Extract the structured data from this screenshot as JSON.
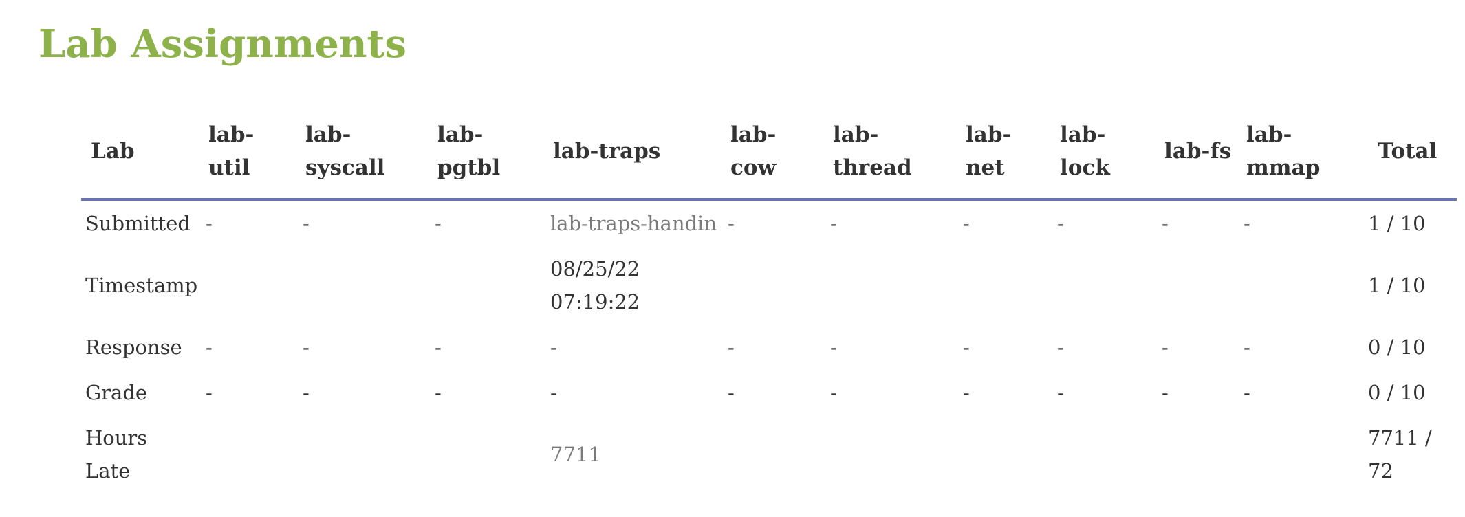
{
  "page": {
    "title": "Lab Assignments"
  },
  "table": {
    "headers": [
      {
        "label": "Lab"
      },
      {
        "label": "lab-util"
      },
      {
        "label": "lab-syscall"
      },
      {
        "label": "lab-pgtbl"
      },
      {
        "label": "lab-traps"
      },
      {
        "label": "lab-cow"
      },
      {
        "label": "lab-thread"
      },
      {
        "label": "lab-net"
      },
      {
        "label": "lab-lock"
      },
      {
        "label": "lab-fs"
      },
      {
        "label": "lab-mmap"
      },
      {
        "label": "Total"
      }
    ],
    "rows": [
      {
        "label": "Submitted",
        "cells": [
          "-",
          "-",
          "-",
          "lab-traps-handin",
          "-",
          "-",
          "-",
          "-",
          "-",
          "-"
        ],
        "total": "1 / 10"
      },
      {
        "label": "Timestamp",
        "cells": [
          "",
          "",
          "",
          "08/25/22 07:19:22",
          "",
          "",
          "",
          "",
          "",
          ""
        ],
        "total": "1 / 10"
      },
      {
        "label": "Response",
        "cells": [
          "-",
          "-",
          "-",
          "-",
          "-",
          "-",
          "-",
          "-",
          "-",
          "-"
        ],
        "total": "0 / 10"
      },
      {
        "label": "Grade",
        "cells": [
          "-",
          "-",
          "-",
          "-",
          "-",
          "-",
          "-",
          "-",
          "-",
          "-"
        ],
        "total": "0 / 10"
      },
      {
        "label": "Hours Late",
        "cells": [
          "",
          "",
          "",
          "7711",
          "",
          "",
          "",
          "",
          "",
          ""
        ],
        "total": "7711 / 72"
      }
    ]
  },
  "colors": {
    "title": "#8db24a",
    "header_rule": "#6873b0",
    "text": "#333333",
    "muted": "#7a7a7a"
  }
}
